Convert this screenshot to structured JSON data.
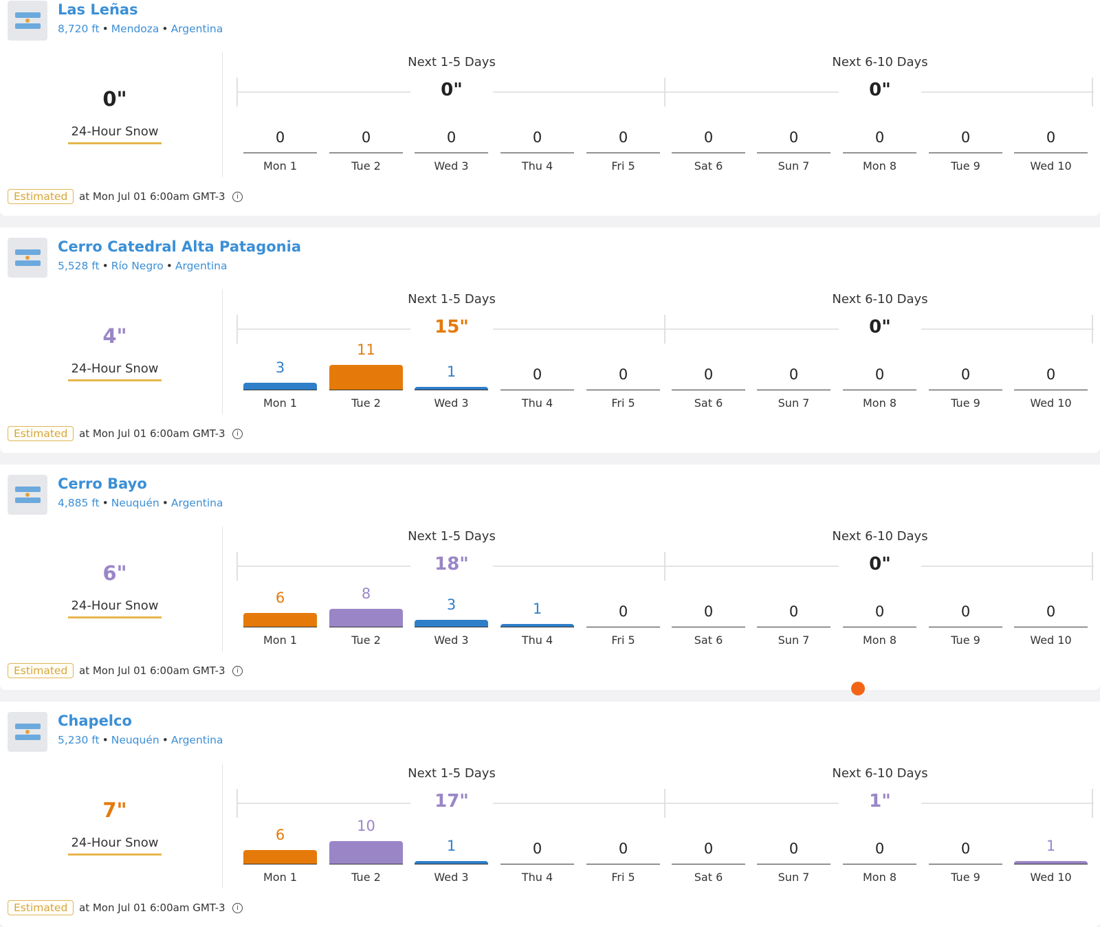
{
  "colors": {
    "blue": "#2f7fc8",
    "orange": "#e57a0b",
    "purple": "#9a86c7",
    "black": "#222222",
    "accent_link": "#3b8fd6"
  },
  "period_labels": [
    "Next 1-5 Days",
    "Next 6-10 Days"
  ],
  "snow_label": "24-Hour Snow",
  "days": [
    "Mon 1",
    "Tue 2",
    "Wed 3",
    "Thu 4",
    "Fri 5",
    "Sat 6",
    "Sun 7",
    "Mon 8",
    "Tue 9",
    "Wed 10"
  ],
  "resorts": [
    {
      "name": "Las Leñas",
      "elevation": "8,720 ft",
      "region": "Mendoza",
      "country": "Argentina",
      "snow_24h": "0\"",
      "snow_24h_color": "black",
      "period_totals": [
        "0\"",
        "0\""
      ],
      "period_colors": [
        "black",
        "black"
      ],
      "daily": [
        0,
        0,
        0,
        0,
        0,
        0,
        0,
        0,
        0,
        0
      ],
      "daily_colors": [
        "black",
        "black",
        "black",
        "black",
        "black",
        "black",
        "black",
        "black",
        "black",
        "black"
      ],
      "status": "Estimated",
      "timestamp": "at Mon Jul 01 6:00am GMT-3"
    },
    {
      "name": "Cerro Catedral Alta Patagonia",
      "elevation": "5,528 ft",
      "region": "Río Negro",
      "country": "Argentina",
      "snow_24h": "4\"",
      "snow_24h_color": "purple",
      "period_totals": [
        "15\"",
        "0\""
      ],
      "period_colors": [
        "orange",
        "black"
      ],
      "daily": [
        3,
        11,
        1,
        0,
        0,
        0,
        0,
        0,
        0,
        0
      ],
      "daily_colors": [
        "blue",
        "orange",
        "blue",
        "black",
        "black",
        "black",
        "black",
        "black",
        "black",
        "black"
      ],
      "status": "Estimated",
      "timestamp": "at Mon Jul 01 6:00am GMT-3"
    },
    {
      "name": "Cerro Bayo",
      "elevation": "4,885 ft",
      "region": "Neuquén",
      "country": "Argentina",
      "snow_24h": "6\"",
      "snow_24h_color": "purple",
      "period_totals": [
        "18\"",
        "0\""
      ],
      "period_colors": [
        "purple",
        "black"
      ],
      "daily": [
        6,
        8,
        3,
        1,
        0,
        0,
        0,
        0,
        0,
        0
      ],
      "daily_colors": [
        "orange",
        "purple",
        "blue",
        "blue",
        "black",
        "black",
        "black",
        "black",
        "black",
        "black"
      ],
      "status": "Estimated",
      "timestamp": "at Mon Jul 01 6:00am GMT-3"
    },
    {
      "name": "Chapelco",
      "elevation": "5,230 ft",
      "region": "Neuquén",
      "country": "Argentina",
      "snow_24h": "7\"",
      "snow_24h_color": "orange",
      "period_totals": [
        "17\"",
        "1\""
      ],
      "period_colors": [
        "purple",
        "purple"
      ],
      "daily": [
        6,
        10,
        1,
        0,
        0,
        0,
        0,
        0,
        0,
        1
      ],
      "daily_colors": [
        "orange",
        "purple",
        "blue",
        "black",
        "black",
        "black",
        "black",
        "black",
        "black",
        "purple"
      ],
      "status": "Estimated",
      "timestamp": "at Mon Jul 01 6:00am GMT-3"
    }
  ]
}
